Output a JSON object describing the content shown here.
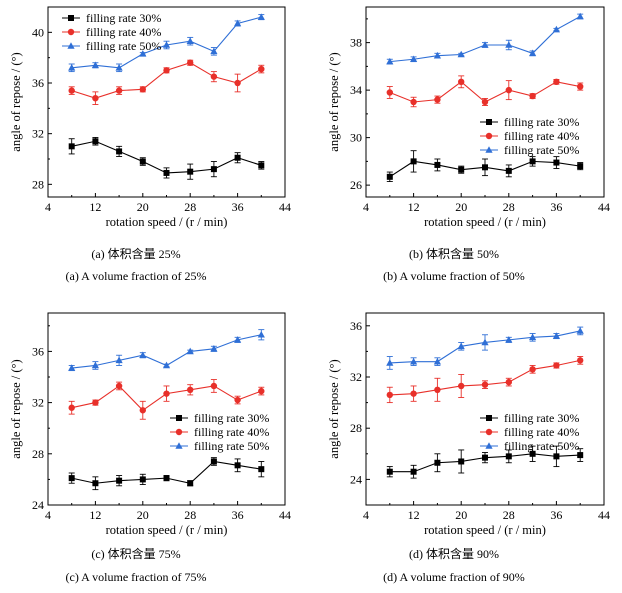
{
  "chart_data": [
    {
      "type": "line",
      "panel_caption_cn": "(a) 体积含量 25%",
      "panel_caption_en": "(a) A volume fraction of 25%",
      "xlabel": "rotation speed / (r / min)",
      "ylabel": "angle of repose / (°)",
      "xlim": [
        4,
        44
      ],
      "ylim": [
        27,
        42
      ],
      "xticks": [
        4,
        12,
        20,
        28,
        36,
        44
      ],
      "yticks": [
        28,
        32,
        36,
        40
      ],
      "legend_position": "top-left",
      "x": [
        8,
        12,
        16,
        20,
        24,
        28,
        32,
        36,
        40
      ],
      "series": [
        {
          "name": "filling rate 30%",
          "color": "#000000",
          "marker": "square",
          "values": [
            31.0,
            31.4,
            30.6,
            29.8,
            28.9,
            29.0,
            29.2,
            30.1,
            29.5
          ],
          "errors": [
            0.6,
            0.3,
            0.4,
            0.3,
            0.4,
            0.6,
            0.6,
            0.4,
            0.3
          ]
        },
        {
          "name": "filling rate 40%",
          "color": "#e8302a",
          "marker": "circle",
          "values": [
            35.4,
            34.8,
            35.4,
            35.5,
            37.0,
            37.6,
            36.5,
            36.0,
            37.1
          ],
          "errors": [
            0.3,
            0.5,
            0.3,
            0.2,
            0.2,
            0.2,
            0.4,
            0.7,
            0.3
          ]
        },
        {
          "name": "filling rate 50%",
          "color": "#2f6fd6",
          "marker": "triangle",
          "values": [
            37.2,
            37.4,
            37.2,
            38.3,
            39.0,
            39.3,
            38.5,
            40.7,
            41.2
          ],
          "errors": [
            0.3,
            0.2,
            0.3,
            0.1,
            0.3,
            0.3,
            0.3,
            0.2,
            0.2
          ]
        }
      ]
    },
    {
      "type": "line",
      "panel_caption_cn": "(b) 体积含量 50%",
      "panel_caption_en": "(b) A volume fraction of 50%",
      "xlabel": "rotation speed / (r / min)",
      "ylabel": "angle of repose / (°)",
      "xlim": [
        4,
        44
      ],
      "ylim": [
        25,
        41
      ],
      "xticks": [
        4,
        12,
        20,
        28,
        36,
        44
      ],
      "yticks": [
        26,
        30,
        34,
        38
      ],
      "legend_position": "center-right",
      "x": [
        8,
        12,
        16,
        20,
        24,
        28,
        32,
        36,
        40
      ],
      "series": [
        {
          "name": "filling rate 30%",
          "color": "#000000",
          "marker": "square",
          "values": [
            26.7,
            28.0,
            27.7,
            27.3,
            27.5,
            27.2,
            28.0,
            27.9,
            27.6
          ],
          "errors": [
            0.4,
            0.9,
            0.5,
            0.3,
            0.7,
            0.5,
            0.4,
            0.5,
            0.3
          ]
        },
        {
          "name": "filling rate 40%",
          "color": "#e8302a",
          "marker": "circle",
          "values": [
            33.8,
            33.0,
            33.2,
            34.7,
            33.0,
            34.0,
            33.5,
            34.7,
            34.3
          ],
          "errors": [
            0.5,
            0.4,
            0.3,
            0.5,
            0.3,
            0.8,
            0.2,
            0.2,
            0.3
          ]
        },
        {
          "name": "filling rate 50%",
          "color": "#2f6fd6",
          "marker": "triangle",
          "values": [
            36.4,
            36.6,
            36.9,
            37.0,
            37.8,
            37.8,
            37.1,
            39.1,
            40.2
          ],
          "errors": [
            0.2,
            0.2,
            0.2,
            0.1,
            0.2,
            0.4,
            0.2,
            0.1,
            0.2
          ]
        }
      ]
    },
    {
      "type": "line",
      "panel_caption_cn": "(c) 体积含量 75%",
      "panel_caption_en": "(c) A volume fraction of 75%",
      "xlabel": "rotation speed / (r / min)",
      "ylabel": "angle of repose / (°)",
      "xlim": [
        4,
        44
      ],
      "ylim": [
        24,
        39
      ],
      "xticks": [
        4,
        12,
        20,
        28,
        36,
        44
      ],
      "yticks": [
        24,
        28,
        32,
        36
      ],
      "legend_position": "center-right",
      "x": [
        8,
        12,
        16,
        20,
        24,
        28,
        32,
        36,
        40
      ],
      "series": [
        {
          "name": "filling rate 30%",
          "color": "#000000",
          "marker": "square",
          "values": [
            26.1,
            25.7,
            25.9,
            26.0,
            26.1,
            25.7,
            27.4,
            27.1,
            26.8
          ],
          "errors": [
            0.4,
            0.5,
            0.4,
            0.4,
            0.2,
            0.2,
            0.3,
            0.5,
            0.6
          ]
        },
        {
          "name": "filling rate 40%",
          "color": "#e8302a",
          "marker": "circle",
          "values": [
            31.6,
            32.0,
            33.3,
            31.4,
            32.7,
            33.0,
            33.3,
            32.2,
            32.9
          ],
          "errors": [
            0.5,
            0.2,
            0.3,
            0.7,
            0.6,
            0.4,
            0.5,
            0.3,
            0.3
          ]
        },
        {
          "name": "filling rate 50%",
          "color": "#2f6fd6",
          "marker": "triangle",
          "values": [
            34.7,
            34.9,
            35.3,
            35.7,
            34.9,
            36.0,
            36.2,
            36.9,
            37.3
          ],
          "errors": [
            0.2,
            0.3,
            0.4,
            0.2,
            0.1,
            0.1,
            0.2,
            0.2,
            0.4
          ]
        }
      ]
    },
    {
      "type": "line",
      "panel_caption_cn": "(d) 体积含量 90%",
      "panel_caption_en": "(d) A volume fraction of 90%",
      "xlabel": "rotation speed / (r / min)",
      "ylabel": "angle of repose / (°)",
      "xlim": [
        4,
        44
      ],
      "ylim": [
        22,
        37
      ],
      "xticks": [
        4,
        12,
        20,
        28,
        36,
        44
      ],
      "yticks": [
        24,
        28,
        32,
        36
      ],
      "legend_position": "bottom-left",
      "x": [
        8,
        12,
        16,
        20,
        24,
        28,
        32,
        36,
        40
      ],
      "series": [
        {
          "name": "filling rate 30%",
          "color": "#000000",
          "marker": "square",
          "values": [
            24.6,
            24.6,
            25.3,
            25.4,
            25.7,
            25.8,
            26.0,
            25.8,
            25.9
          ],
          "errors": [
            0.4,
            0.5,
            0.7,
            0.9,
            0.4,
            0.5,
            0.6,
            0.8,
            0.5
          ]
        },
        {
          "name": "filling rate 40%",
          "color": "#e8302a",
          "marker": "circle",
          "values": [
            30.6,
            30.7,
            31.0,
            31.3,
            31.4,
            31.6,
            32.6,
            32.9,
            33.3
          ],
          "errors": [
            0.6,
            0.6,
            0.9,
            0.9,
            0.3,
            0.3,
            0.3,
            0.2,
            0.3
          ]
        },
        {
          "name": "filling rate 50%",
          "color": "#2f6fd6",
          "marker": "triangle",
          "values": [
            33.1,
            33.2,
            33.2,
            34.4,
            34.7,
            34.9,
            35.1,
            35.2,
            35.6
          ],
          "errors": [
            0.5,
            0.3,
            0.3,
            0.3,
            0.6,
            0.2,
            0.3,
            0.2,
            0.3
          ]
        }
      ]
    }
  ]
}
